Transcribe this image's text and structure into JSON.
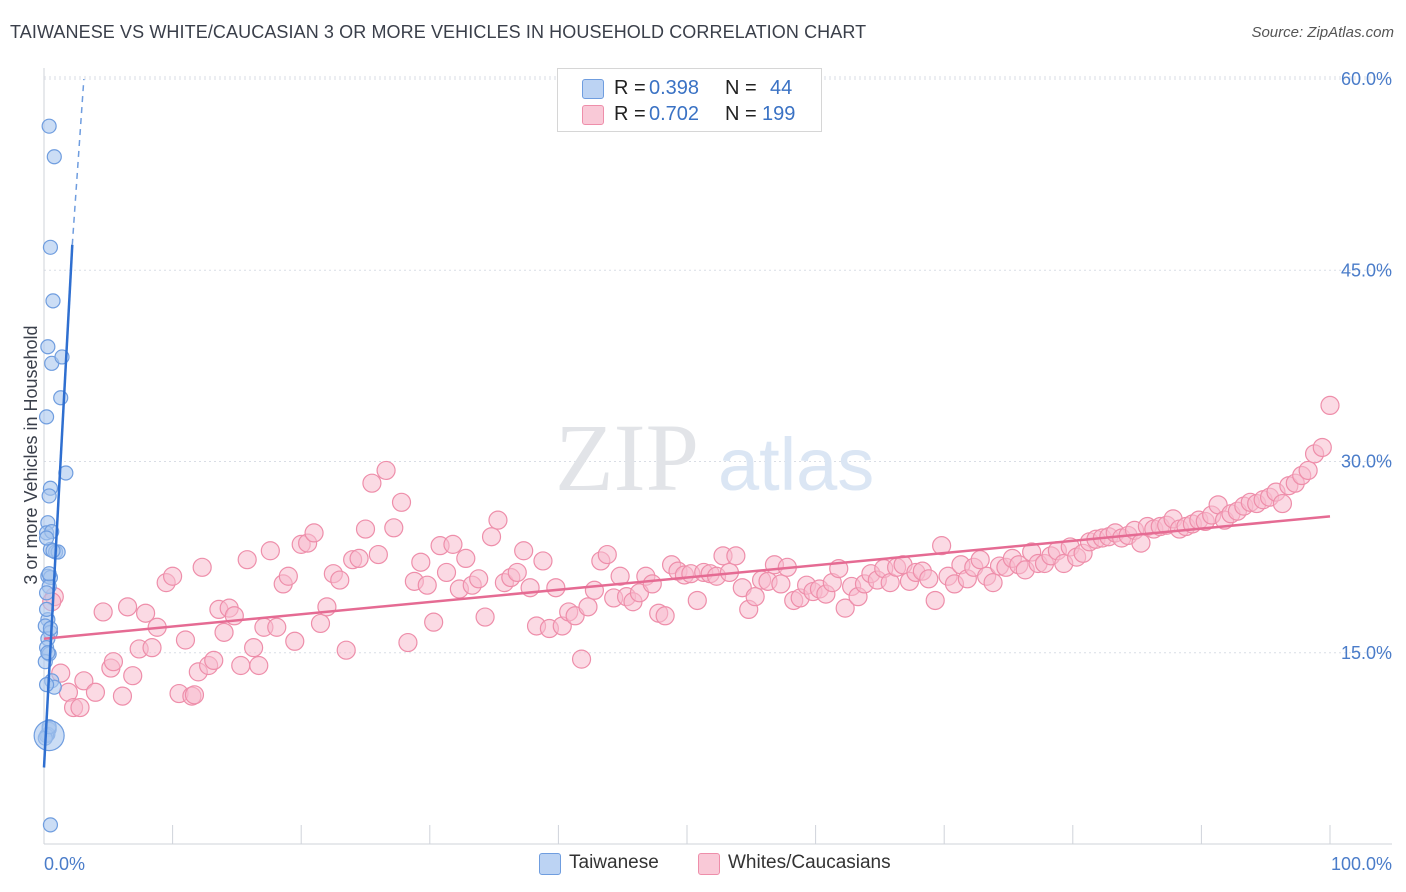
{
  "title": "TAIWANESE VS WHITE/CAUCASIAN 3 OR MORE VEHICLES IN HOUSEHOLD CORRELATION CHART",
  "source": "Source: ZipAtlas.com",
  "watermark": {
    "zip": "ZIP",
    "atlas": "atlas"
  },
  "legend": {
    "r_label": "R =",
    "n_label": "N =",
    "rows": [
      {
        "series": "Taiwanese",
        "r": "0.398",
        "n": "44"
      },
      {
        "series": "Whites/Caucasians",
        "r": "0.702",
        "n": "199"
      }
    ]
  },
  "colors": {
    "taiwanese_fill": "#a9c6ee",
    "taiwanese_stroke": "#6f9ddf",
    "taiwanese_line": "#2f6fd0",
    "white_fill": "#f8bccd",
    "white_stroke": "#ee8eaa",
    "white_line": "#e56b93",
    "grid": "#d9dde5",
    "tick_text": "#4a7cc9"
  },
  "chart_data": {
    "type": "scatter",
    "title": "TAIWANESE VS WHITE/CAUCASIAN 3 OR MORE VEHICLES IN HOUSEHOLD CORRELATION CHART",
    "xlabel": "",
    "ylabel": "3 or more Vehicles in Household",
    "xlim": [
      0,
      100
    ],
    "ylim": [
      0,
      60
    ],
    "x_tick_labels": [
      "0.0%",
      "100.0%"
    ],
    "y_ticks": [
      15,
      30,
      45,
      60
    ],
    "y_tick_labels": [
      "15.0%",
      "30.0%",
      "45.0%",
      "60.0%"
    ],
    "grid": true,
    "series": [
      {
        "name": "Taiwanese",
        "trend": {
          "x1": 0.0,
          "y1": 6.0,
          "x2": 2.2,
          "y2": 47.0,
          "dash_to": [
            3.1,
            60.0
          ]
        },
        "points": [
          [
            0.4,
            56.3
          ],
          [
            0.8,
            53.9
          ],
          [
            0.5,
            46.8
          ],
          [
            0.7,
            42.6
          ],
          [
            0.3,
            39.0
          ],
          [
            0.6,
            37.7
          ],
          [
            1.4,
            38.2
          ],
          [
            0.2,
            33.5
          ],
          [
            1.3,
            35.0
          ],
          [
            1.7,
            29.1
          ],
          [
            0.5,
            27.9
          ],
          [
            0.4,
            27.3
          ],
          [
            0.3,
            25.2
          ],
          [
            0.2,
            24.4
          ],
          [
            0.6,
            24.5
          ],
          [
            0.5,
            23.1
          ],
          [
            0.9,
            22.9
          ],
          [
            1.1,
            22.9
          ],
          [
            0.3,
            21.0
          ],
          [
            0.5,
            20.9
          ],
          [
            0.4,
            20.2
          ],
          [
            0.2,
            19.7
          ],
          [
            0.3,
            17.6
          ],
          [
            0.1,
            17.1
          ],
          [
            0.5,
            16.6
          ],
          [
            0.3,
            16.1
          ],
          [
            0.2,
            15.4
          ],
          [
            0.4,
            14.9
          ],
          [
            0.1,
            14.3
          ],
          [
            0.6,
            12.8
          ],
          [
            0.8,
            12.3
          ],
          [
            0.4,
            9.0
          ],
          [
            0.3,
            8.6
          ],
          [
            0.2,
            8.5
          ],
          [
            0.1,
            8.3
          ],
          [
            0.5,
            1.5
          ],
          [
            0.2,
            24.0
          ],
          [
            0.7,
            23.0
          ],
          [
            0.4,
            21.2
          ],
          [
            0.2,
            18.4
          ],
          [
            0.5,
            16.9
          ],
          [
            0.3,
            15.0
          ],
          [
            0.2,
            12.5
          ],
          [
            0.4,
            9.2
          ]
        ],
        "large_point": [
          0.4,
          8.5
        ]
      },
      {
        "name": "Whites/Caucasians",
        "trend": {
          "x1": 0.0,
          "y1": 16.1,
          "x2": 100.0,
          "y2": 25.7
        },
        "points": [
          [
            0.8,
            19.4
          ],
          [
            0.6,
            19.0
          ],
          [
            1.3,
            13.4
          ],
          [
            1.9,
            11.9
          ],
          [
            2.3,
            10.7
          ],
          [
            2.8,
            10.7
          ],
          [
            3.1,
            12.8
          ],
          [
            4.0,
            11.9
          ],
          [
            4.6,
            18.2
          ],
          [
            5.2,
            13.8
          ],
          [
            5.4,
            14.3
          ],
          [
            6.1,
            11.6
          ],
          [
            6.5,
            18.6
          ],
          [
            6.9,
            13.2
          ],
          [
            7.4,
            15.3
          ],
          [
            7.9,
            18.1
          ],
          [
            8.4,
            15.4
          ],
          [
            8.8,
            17.0
          ],
          [
            9.5,
            20.5
          ],
          [
            10.0,
            21.0
          ],
          [
            10.5,
            11.8
          ],
          [
            11.0,
            16.0
          ],
          [
            11.5,
            11.6
          ],
          [
            11.7,
            11.7
          ],
          [
            12.0,
            13.5
          ],
          [
            12.3,
            21.7
          ],
          [
            12.8,
            14.0
          ],
          [
            13.2,
            14.4
          ],
          [
            13.6,
            18.4
          ],
          [
            14.0,
            16.6
          ],
          [
            14.4,
            18.5
          ],
          [
            14.8,
            17.9
          ],
          [
            15.3,
            14.0
          ],
          [
            15.8,
            22.3
          ],
          [
            16.3,
            15.4
          ],
          [
            16.7,
            14.0
          ],
          [
            17.1,
            17.0
          ],
          [
            17.6,
            23.0
          ],
          [
            18.1,
            17.0
          ],
          [
            18.6,
            20.4
          ],
          [
            19.0,
            21.0
          ],
          [
            19.5,
            15.9
          ],
          [
            20.0,
            23.5
          ],
          [
            20.5,
            23.6
          ],
          [
            21.0,
            24.4
          ],
          [
            21.5,
            17.3
          ],
          [
            22.0,
            18.6
          ],
          [
            22.5,
            21.2
          ],
          [
            23.0,
            20.7
          ],
          [
            23.5,
            15.2
          ],
          [
            24.0,
            22.3
          ],
          [
            24.5,
            22.4
          ],
          [
            25.0,
            24.7
          ],
          [
            25.5,
            28.3
          ],
          [
            26.0,
            22.7
          ],
          [
            26.6,
            29.3
          ],
          [
            27.2,
            24.8
          ],
          [
            27.8,
            26.8
          ],
          [
            28.3,
            15.8
          ],
          [
            28.8,
            20.6
          ],
          [
            29.3,
            22.1
          ],
          [
            29.8,
            20.3
          ],
          [
            30.3,
            17.4
          ],
          [
            30.8,
            23.4
          ],
          [
            31.3,
            21.3
          ],
          [
            31.8,
            23.5
          ],
          [
            32.3,
            20.0
          ],
          [
            32.8,
            22.4
          ],
          [
            33.3,
            20.3
          ],
          [
            33.8,
            20.8
          ],
          [
            34.3,
            17.8
          ],
          [
            34.8,
            24.1
          ],
          [
            35.3,
            25.4
          ],
          [
            35.8,
            20.5
          ],
          [
            36.3,
            20.9
          ],
          [
            36.8,
            21.3
          ],
          [
            37.3,
            23.0
          ],
          [
            37.8,
            20.1
          ],
          [
            38.3,
            17.1
          ],
          [
            38.8,
            22.2
          ],
          [
            39.3,
            16.9
          ],
          [
            39.8,
            20.1
          ],
          [
            40.3,
            17.1
          ],
          [
            40.8,
            18.2
          ],
          [
            41.3,
            17.9
          ],
          [
            41.8,
            14.5
          ],
          [
            42.3,
            18.6
          ],
          [
            42.8,
            19.9
          ],
          [
            43.3,
            22.2
          ],
          [
            43.8,
            22.7
          ],
          [
            44.3,
            19.3
          ],
          [
            44.8,
            21.0
          ],
          [
            45.3,
            19.4
          ],
          [
            45.8,
            19.0
          ],
          [
            46.3,
            19.7
          ],
          [
            46.8,
            21.0
          ],
          [
            47.3,
            20.4
          ],
          [
            47.8,
            18.1
          ],
          [
            48.3,
            17.9
          ],
          [
            48.8,
            21.9
          ],
          [
            49.3,
            21.4
          ],
          [
            49.8,
            21.1
          ],
          [
            50.3,
            21.2
          ],
          [
            50.8,
            19.1
          ],
          [
            51.3,
            21.3
          ],
          [
            51.8,
            21.2
          ],
          [
            52.3,
            21.0
          ],
          [
            52.8,
            22.6
          ],
          [
            53.3,
            21.3
          ],
          [
            53.8,
            22.6
          ],
          [
            54.3,
            20.1
          ],
          [
            54.8,
            18.4
          ],
          [
            55.3,
            19.4
          ],
          [
            55.8,
            20.7
          ],
          [
            56.3,
            20.6
          ],
          [
            56.8,
            21.9
          ],
          [
            57.3,
            20.4
          ],
          [
            57.8,
            21.7
          ],
          [
            58.3,
            19.1
          ],
          [
            58.8,
            19.3
          ],
          [
            59.3,
            20.3
          ],
          [
            59.8,
            19.8
          ],
          [
            60.3,
            20.0
          ],
          [
            60.8,
            19.6
          ],
          [
            61.3,
            20.5
          ],
          [
            61.8,
            21.6
          ],
          [
            62.3,
            18.5
          ],
          [
            62.8,
            20.2
          ],
          [
            63.3,
            19.4
          ],
          [
            63.8,
            20.4
          ],
          [
            64.3,
            21.2
          ],
          [
            64.8,
            20.7
          ],
          [
            65.3,
            21.6
          ],
          [
            65.8,
            20.5
          ],
          [
            66.3,
            21.7
          ],
          [
            66.8,
            21.9
          ],
          [
            67.3,
            20.6
          ],
          [
            67.8,
            21.3
          ],
          [
            68.3,
            21.4
          ],
          [
            68.8,
            20.8
          ],
          [
            69.3,
            19.1
          ],
          [
            69.8,
            23.4
          ],
          [
            70.3,
            21.0
          ],
          [
            70.8,
            20.4
          ],
          [
            71.3,
            21.9
          ],
          [
            71.8,
            20.8
          ],
          [
            72.3,
            21.7
          ],
          [
            72.8,
            22.3
          ],
          [
            73.3,
            21.0
          ],
          [
            73.8,
            20.5
          ],
          [
            74.3,
            21.8
          ],
          [
            74.8,
            21.7
          ],
          [
            75.3,
            22.4
          ],
          [
            75.8,
            21.9
          ],
          [
            76.3,
            21.5
          ],
          [
            76.8,
            22.9
          ],
          [
            77.3,
            22.0
          ],
          [
            77.8,
            22.0
          ],
          [
            78.3,
            22.6
          ],
          [
            78.8,
            23.0
          ],
          [
            79.3,
            22.0
          ],
          [
            79.8,
            23.3
          ],
          [
            80.3,
            22.5
          ],
          [
            80.8,
            22.8
          ],
          [
            81.3,
            23.7
          ],
          [
            81.8,
            23.9
          ],
          [
            82.3,
            24.0
          ],
          [
            82.8,
            24.1
          ],
          [
            83.3,
            24.4
          ],
          [
            83.8,
            24.0
          ],
          [
            84.3,
            24.2
          ],
          [
            84.8,
            24.6
          ],
          [
            85.3,
            23.6
          ],
          [
            85.8,
            24.9
          ],
          [
            86.3,
            24.7
          ],
          [
            86.8,
            24.9
          ],
          [
            87.3,
            25.0
          ],
          [
            87.8,
            25.5
          ],
          [
            88.3,
            24.7
          ],
          [
            88.8,
            24.9
          ],
          [
            89.3,
            25.1
          ],
          [
            89.8,
            25.4
          ],
          [
            90.3,
            25.3
          ],
          [
            90.8,
            25.8
          ],
          [
            91.3,
            26.6
          ],
          [
            91.8,
            25.4
          ],
          [
            92.3,
            25.9
          ],
          [
            92.8,
            26.1
          ],
          [
            93.3,
            26.5
          ],
          [
            93.8,
            26.8
          ],
          [
            94.3,
            26.7
          ],
          [
            94.8,
            27.0
          ],
          [
            95.3,
            27.2
          ],
          [
            95.8,
            27.6
          ],
          [
            96.3,
            26.7
          ],
          [
            96.8,
            28.1
          ],
          [
            97.3,
            28.3
          ],
          [
            97.8,
            28.9
          ],
          [
            98.3,
            29.3
          ],
          [
            98.8,
            30.6
          ],
          [
            99.4,
            31.1
          ],
          [
            100.0,
            34.4
          ]
        ]
      }
    ]
  }
}
